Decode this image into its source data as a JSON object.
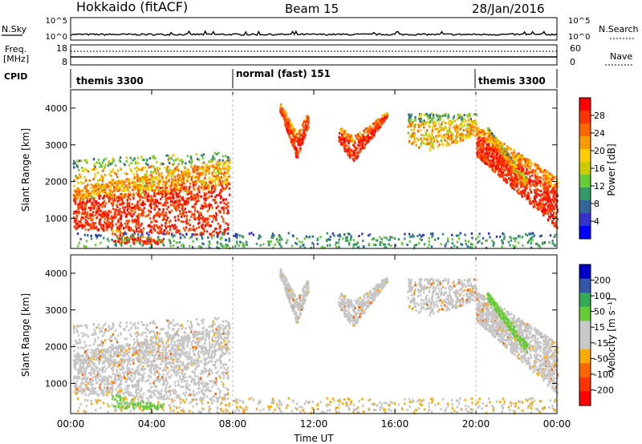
{
  "header": {
    "title": "Hokkaido (fitACF)",
    "beam": "Beam 15",
    "date": "28/Jan/2016"
  },
  "top_panels": {
    "nsky_label": "N.Sky",
    "nsky_ticks": [
      "10^5",
      "10^0"
    ],
    "nsearch_label": "N.Search",
    "nsearch_ticks": [
      "10^5",
      "10^0"
    ],
    "freq_label_1": "Freq.",
    "freq_label_2": "[MHz]",
    "freq_ticks": [
      "18",
      "8"
    ],
    "nave_label": "Nave",
    "nave_ticks": [
      "60",
      "0"
    ],
    "cpid_label": "CPID",
    "cpid_segments": [
      {
        "label": "themis 3300",
        "start": 0,
        "end": 8
      },
      {
        "label": "normal (fast) 151",
        "start": 8,
        "end": 20
      },
      {
        "label": "themis 3300",
        "start": 20,
        "end": 24
      }
    ]
  },
  "power_colorbar": {
    "label": "Power [dB]",
    "ticks": [
      "28",
      "24",
      "20",
      "16",
      "12",
      "8",
      "4"
    ],
    "colors": [
      "#ff0000",
      "#ff3300",
      "#ff6600",
      "#ff9900",
      "#ffcc00",
      "#cccc00",
      "#66cc33",
      "#339966",
      "#336699",
      "#3333cc",
      "#0000ff"
    ]
  },
  "velocity_colorbar": {
    "label": "Velocity [m s⁻¹]",
    "ticks": [
      "200",
      "100",
      "50",
      "15",
      "-15",
      "-50",
      "-100",
      "-200"
    ],
    "colors": [
      "#0000cc",
      "#3355aa",
      "#33aa55",
      "#66cc33",
      "#c8c8c8",
      "#c8c8c8",
      "#ffaa00",
      "#ff6600",
      "#ff3300",
      "#ff0000"
    ]
  },
  "chart_data": [
    {
      "type": "heatmap",
      "name": "power",
      "ylabel": "Slant Range [km]",
      "xlim": [
        0,
        24
      ],
      "ylim": [
        180,
        4500
      ],
      "yticks": [
        1000,
        2000,
        3000,
        4000
      ],
      "features": [
        {
          "t0": 0.0,
          "t1": 8.0,
          "r0": 700,
          "r1": 2500,
          "level": "high"
        },
        {
          "t0": 10.2,
          "t1": 11.7,
          "r0": 2500,
          "r1": 4200,
          "level": "high"
        },
        {
          "t0": 13.2,
          "t1": 15.5,
          "r0": 2400,
          "r1": 3900,
          "level": "high"
        },
        {
          "t0": 16.5,
          "t1": 20.0,
          "r0": 2800,
          "r1": 3900,
          "level": "mid"
        },
        {
          "t0": 20.0,
          "t1": 24.0,
          "r0": 800,
          "r1": 3600,
          "level": "high"
        }
      ]
    },
    {
      "type": "heatmap",
      "name": "velocity",
      "ylabel": "Slant Range [km]",
      "xlim": [
        0,
        24
      ],
      "ylim": [
        180,
        4500
      ],
      "yticks": [
        1000,
        2000,
        3000,
        4000
      ],
      "xlabel": "Time UT",
      "xticks": [
        "00:00",
        "04:00",
        "08:00",
        "12:00",
        "16:00",
        "20:00",
        "00:00"
      ]
    }
  ]
}
